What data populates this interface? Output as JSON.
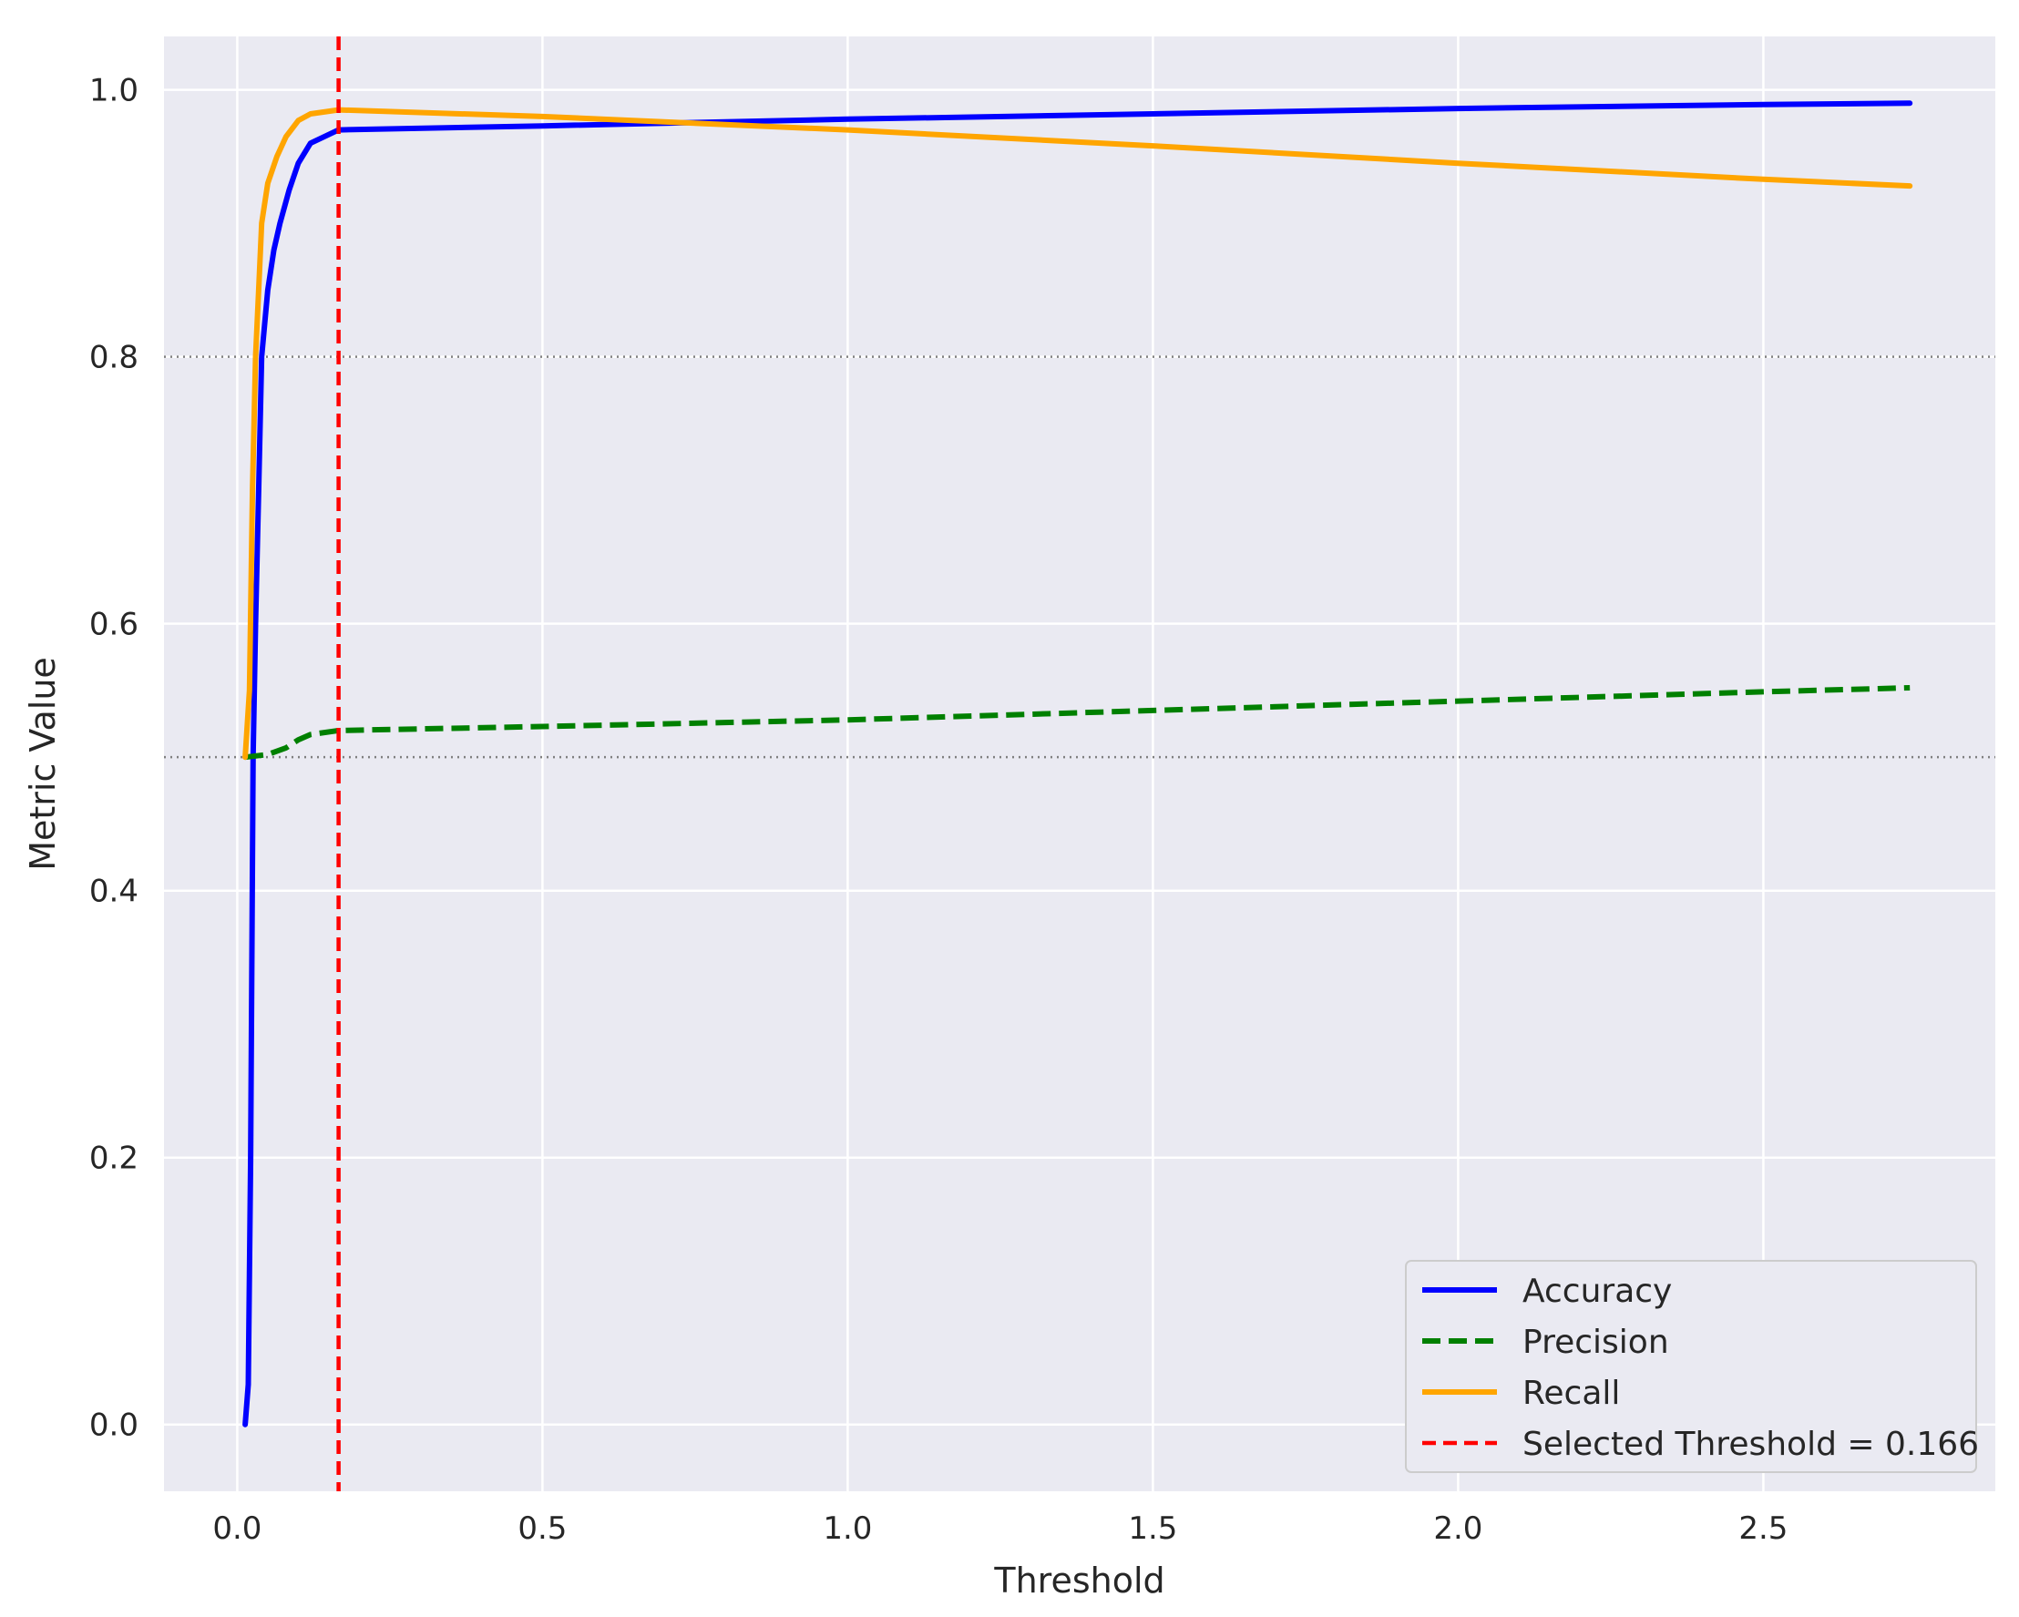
{
  "chart_data": {
    "type": "line",
    "title": "",
    "xlabel": "Threshold",
    "ylabel": "Metric Value",
    "xlim": [
      -0.12,
      2.88
    ],
    "ylim": [
      -0.05,
      1.04
    ],
    "xticks": [
      0.0,
      0.5,
      1.0,
      1.5,
      2.0,
      2.5
    ],
    "xtick_labels": [
      "0.0",
      "0.5",
      "1.0",
      "1.5",
      "2.0",
      "2.5"
    ],
    "yticks": [
      0.0,
      0.2,
      0.4,
      0.6,
      0.8,
      1.0
    ],
    "ytick_labels": [
      "0.0",
      "0.2",
      "0.4",
      "0.6",
      "0.8",
      "1.0"
    ],
    "grid": true,
    "background": "#eaeaf2",
    "legend_position": "lower-right",
    "reference_lines": {
      "horizontal": [
        0.5,
        0.8
      ],
      "color": "#808080",
      "style": "dotted"
    },
    "vertical_line": {
      "x": 0.166,
      "label": "Selected Threshold = 0.166",
      "color": "#ff0000",
      "style": "dashed"
    },
    "series": [
      {
        "name": "Accuracy",
        "color": "#0000ff",
        "style": "solid",
        "points": [
          [
            0.013,
            0.0
          ],
          [
            0.018,
            0.03
          ],
          [
            0.022,
            0.2
          ],
          [
            0.026,
            0.5
          ],
          [
            0.03,
            0.6
          ],
          [
            0.035,
            0.7
          ],
          [
            0.04,
            0.8
          ],
          [
            0.05,
            0.85
          ],
          [
            0.06,
            0.88
          ],
          [
            0.07,
            0.9
          ],
          [
            0.085,
            0.925
          ],
          [
            0.1,
            0.945
          ],
          [
            0.12,
            0.96
          ],
          [
            0.166,
            0.97
          ],
          [
            0.5,
            0.973
          ],
          [
            1.0,
            0.978
          ],
          [
            1.5,
            0.982
          ],
          [
            2.0,
            0.986
          ],
          [
            2.5,
            0.989
          ],
          [
            2.74,
            0.99
          ]
        ]
      },
      {
        "name": "Precision",
        "color": "#008000",
        "style": "dashed",
        "points": [
          [
            0.013,
            0.5
          ],
          [
            0.05,
            0.502
          ],
          [
            0.08,
            0.507
          ],
          [
            0.1,
            0.513
          ],
          [
            0.12,
            0.517
          ],
          [
            0.166,
            0.52
          ],
          [
            0.5,
            0.523
          ],
          [
            1.0,
            0.528
          ],
          [
            1.5,
            0.535
          ],
          [
            2.0,
            0.542
          ],
          [
            2.5,
            0.549
          ],
          [
            2.74,
            0.552
          ]
        ]
      },
      {
        "name": "Recall",
        "color": "#ffa500",
        "style": "solid",
        "points": [
          [
            0.013,
            0.5
          ],
          [
            0.02,
            0.55
          ],
          [
            0.025,
            0.7
          ],
          [
            0.03,
            0.8
          ],
          [
            0.035,
            0.85
          ],
          [
            0.04,
            0.9
          ],
          [
            0.05,
            0.93
          ],
          [
            0.065,
            0.95
          ],
          [
            0.08,
            0.965
          ],
          [
            0.1,
            0.977
          ],
          [
            0.12,
            0.982
          ],
          [
            0.166,
            0.985
          ],
          [
            0.5,
            0.98
          ],
          [
            1.0,
            0.97
          ],
          [
            1.5,
            0.958
          ],
          [
            2.0,
            0.945
          ],
          [
            2.5,
            0.933
          ],
          [
            2.74,
            0.928
          ]
        ]
      }
    ]
  }
}
